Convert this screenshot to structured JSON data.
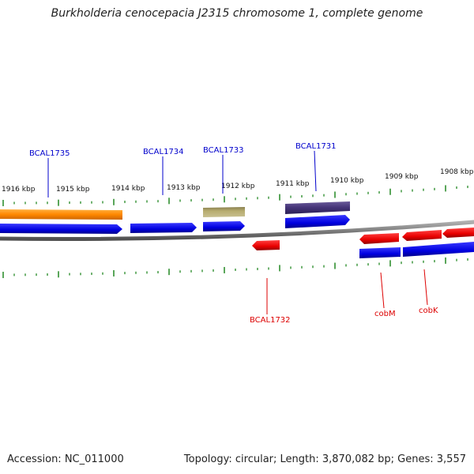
{
  "title": "Burkholderia cenocepacia J2315 chromosome 1, complete genome",
  "footer": {
    "accession": "Accession: NC_011000",
    "summary": "Topology: circular; Length: 3,870,082 bp; Genes: 3,557"
  },
  "scale_labels": [
    "1916 kbp",
    "1915 kbp",
    "1914 kbp",
    "1913 kbp",
    "1912 kbp",
    "1911 kbp",
    "1910 kbp",
    "1909 kbp",
    "1908 kbp"
  ],
  "genes": [
    {
      "name": "BCAL1735",
      "strand": "forward",
      "color": "#0000cc"
    },
    {
      "name": "BCAL1734",
      "strand": "forward",
      "color": "#0000cc"
    },
    {
      "name": "BCAL1733",
      "strand": "forward",
      "color": "#0000cc"
    },
    {
      "name": "BCAL1731",
      "strand": "forward",
      "color": "#0000cc"
    },
    {
      "name": "BCAL1732",
      "strand": "reverse",
      "color": "#dd0000"
    },
    {
      "name": "cobM",
      "strand": "reverse",
      "color": "#dd0000"
    },
    {
      "name": "cobK",
      "strand": "reverse",
      "color": "#dd0000"
    }
  ],
  "colors": {
    "forward_cds": "#0000ee",
    "reverse_cds": "#ee0000",
    "backbone": "#808080",
    "ticks": "#228822",
    "feature_orange": "#ff8800",
    "feature_olive": "#aaa066",
    "feature_purple": "#443377"
  }
}
